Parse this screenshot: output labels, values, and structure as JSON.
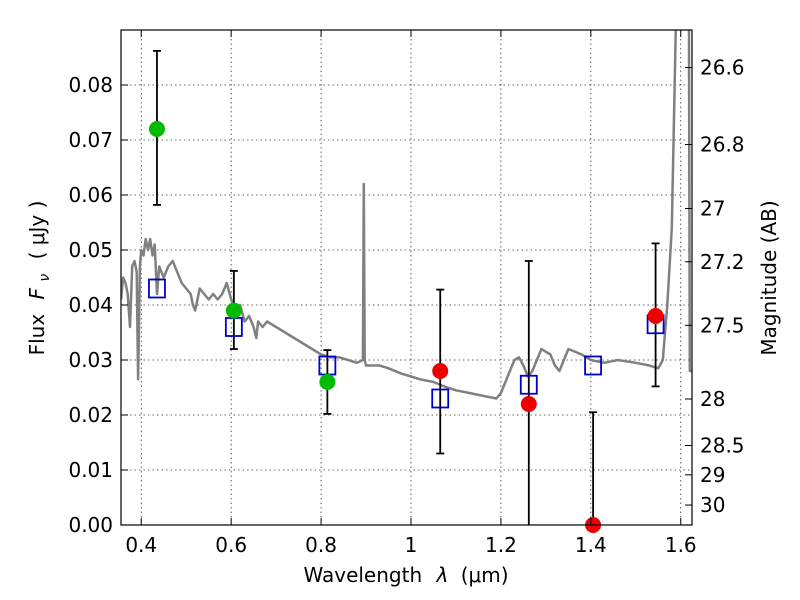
{
  "chart_data": {
    "type": "scatter",
    "xlabel_prefix": "Wavelength",
    "xlabel_symbol": "λ",
    "xlabel_unit": "(μm)",
    "ylabel_prefix": "Flux",
    "ylabel_symbol": "F",
    "ylabel_subscript": "ν",
    "ylabel_unit": "( μJy )",
    "y2label": "Magnitude (AB)",
    "xlim": [
      0.355,
      1.625
    ],
    "ylim": [
      0.0,
      0.09
    ],
    "x_ticks": [
      {
        "value": 0.4,
        "label": "0.4"
      },
      {
        "value": 0.6,
        "label": "0.6"
      },
      {
        "value": 0.8,
        "label": "0.8"
      },
      {
        "value": 1.0,
        "label": "1"
      },
      {
        "value": 1.2,
        "label": "1.2"
      },
      {
        "value": 1.4,
        "label": "1.4"
      },
      {
        "value": 1.6,
        "label": "1.6"
      }
    ],
    "y_ticks": [
      {
        "value": 0.0,
        "label": "0.00"
      },
      {
        "value": 0.01,
        "label": "0.01"
      },
      {
        "value": 0.02,
        "label": "0.02"
      },
      {
        "value": 0.03,
        "label": "0.03"
      },
      {
        "value": 0.04,
        "label": "0.04"
      },
      {
        "value": 0.05,
        "label": "0.05"
      },
      {
        "value": 0.06,
        "label": "0.06"
      },
      {
        "value": 0.07,
        "label": "0.07"
      },
      {
        "value": 0.08,
        "label": "0.08"
      }
    ],
    "y2_ticks": [
      {
        "mag": 26.6,
        "label": "26.6"
      },
      {
        "mag": 26.8,
        "label": "26.8"
      },
      {
        "mag": 27.0,
        "label": "27"
      },
      {
        "mag": 27.2,
        "label": "27.2"
      },
      {
        "mag": 27.5,
        "label": "27.5"
      },
      {
        "mag": 28.0,
        "label": "28"
      },
      {
        "mag": 28.5,
        "label": "28.5"
      },
      {
        "mag": 29.0,
        "label": "29"
      },
      {
        "mag": 30.0,
        "label": "30"
      }
    ],
    "grid": true,
    "colors": {
      "model": "#808080",
      "green": "#00bb00",
      "red": "#ee0000",
      "square": "#0000cc",
      "errorbar": "#000000"
    },
    "model_spectrum": [
      [
        0.355,
        0.041
      ],
      [
        0.36,
        0.045
      ],
      [
        0.365,
        0.044
      ],
      [
        0.37,
        0.042
      ],
      [
        0.375,
        0.036
      ],
      [
        0.38,
        0.047
      ],
      [
        0.385,
        0.048
      ],
      [
        0.39,
        0.046
      ],
      [
        0.393,
        0.0265
      ],
      [
        0.397,
        0.047
      ],
      [
        0.4,
        0.05
      ],
      [
        0.405,
        0.049
      ],
      [
        0.41,
        0.052
      ],
      [
        0.415,
        0.05
      ],
      [
        0.42,
        0.052
      ],
      [
        0.425,
        0.049
      ],
      [
        0.43,
        0.051
      ],
      [
        0.435,
        0.042
      ],
      [
        0.44,
        0.047
      ],
      [
        0.45,
        0.045
      ],
      [
        0.46,
        0.047
      ],
      [
        0.47,
        0.048
      ],
      [
        0.48,
        0.046
      ],
      [
        0.49,
        0.044
      ],
      [
        0.5,
        0.043
      ],
      [
        0.51,
        0.042
      ],
      [
        0.515,
        0.04
      ],
      [
        0.52,
        0.039
      ],
      [
        0.53,
        0.043
      ],
      [
        0.54,
        0.042
      ],
      [
        0.55,
        0.041
      ],
      [
        0.56,
        0.042
      ],
      [
        0.57,
        0.041
      ],
      [
        0.58,
        0.042
      ],
      [
        0.59,
        0.044
      ],
      [
        0.6,
        0.041
      ],
      [
        0.61,
        0.039
      ],
      [
        0.62,
        0.04
      ],
      [
        0.63,
        0.037
      ],
      [
        0.64,
        0.038
      ],
      [
        0.65,
        0.036
      ],
      [
        0.656,
        0.034
      ],
      [
        0.66,
        0.037
      ],
      [
        0.67,
        0.036
      ],
      [
        0.68,
        0.037
      ],
      [
        0.7,
        0.036
      ],
      [
        0.72,
        0.035
      ],
      [
        0.74,
        0.034
      ],
      [
        0.76,
        0.033
      ],
      [
        0.78,
        0.032
      ],
      [
        0.8,
        0.031
      ],
      [
        0.82,
        0.0305
      ],
      [
        0.84,
        0.0305
      ],
      [
        0.86,
        0.03
      ],
      [
        0.88,
        0.0295
      ],
      [
        0.893,
        0.03
      ],
      [
        0.895,
        0.062
      ],
      [
        0.897,
        0.03
      ],
      [
        0.9,
        0.029
      ],
      [
        0.93,
        0.029
      ],
      [
        0.95,
        0.0285
      ],
      [
        0.98,
        0.0275
      ],
      [
        1.0,
        0.027
      ],
      [
        1.02,
        0.0265
      ],
      [
        1.05,
        0.026
      ],
      [
        1.08,
        0.025
      ],
      [
        1.1,
        0.0245
      ],
      [
        1.13,
        0.024
      ],
      [
        1.16,
        0.0235
      ],
      [
        1.19,
        0.023
      ],
      [
        1.2,
        0.024
      ],
      [
        1.21,
        0.026
      ],
      [
        1.22,
        0.028
      ],
      [
        1.23,
        0.03
      ],
      [
        1.24,
        0.0305
      ],
      [
        1.25,
        0.029
      ],
      [
        1.26,
        0.027
      ],
      [
        1.27,
        0.028
      ],
      [
        1.28,
        0.03
      ],
      [
        1.29,
        0.032
      ],
      [
        1.3,
        0.0315
      ],
      [
        1.31,
        0.031
      ],
      [
        1.32,
        0.029
      ],
      [
        1.33,
        0.028
      ],
      [
        1.34,
        0.03
      ],
      [
        1.35,
        0.032
      ],
      [
        1.38,
        0.031
      ],
      [
        1.4,
        0.03
      ],
      [
        1.43,
        0.0295
      ],
      [
        1.46,
        0.03
      ],
      [
        1.5,
        0.0295
      ],
      [
        1.53,
        0.029
      ],
      [
        1.55,
        0.0285
      ],
      [
        1.56,
        0.03
      ],
      [
        1.57,
        0.04
      ],
      [
        1.58,
        0.054
      ],
      [
        1.59,
        0.095
      ]
    ],
    "model_spectrum_tail": [
      [
        1.618,
        0.095
      ],
      [
        1.62,
        0.028
      ],
      [
        1.625,
        0.028
      ]
    ],
    "green_points": [
      {
        "x": 0.435,
        "y": 0.072,
        "err_low": 0.0138,
        "err_high": 0.0142
      },
      {
        "x": 0.606,
        "y": 0.039,
        "err_low": 0.007,
        "err_high": 0.0072
      },
      {
        "x": 0.814,
        "y": 0.026,
        "err_low": 0.0058,
        "err_high": 0.0058
      }
    ],
    "red_points": [
      {
        "x": 1.065,
        "y": 0.028,
        "err_low": 0.015,
        "err_high": 0.0148
      },
      {
        "x": 1.262,
        "y": 0.022,
        "err_low": 0.022,
        "err_high": 0.026
      },
      {
        "x": 1.405,
        "y": 0.0,
        "err_low": 0.0,
        "err_high": 0.0205
      },
      {
        "x": 1.544,
        "y": 0.038,
        "err_low": 0.0128,
        "err_high": 0.0132
      }
    ],
    "model_photometry": [
      {
        "x": 0.435,
        "y": 0.043
      },
      {
        "x": 0.606,
        "y": 0.036
      },
      {
        "x": 0.814,
        "y": 0.029
      },
      {
        "x": 1.065,
        "y": 0.023
      },
      {
        "x": 1.262,
        "y": 0.0255
      },
      {
        "x": 1.405,
        "y": 0.029
      },
      {
        "x": 1.544,
        "y": 0.0365
      }
    ]
  }
}
